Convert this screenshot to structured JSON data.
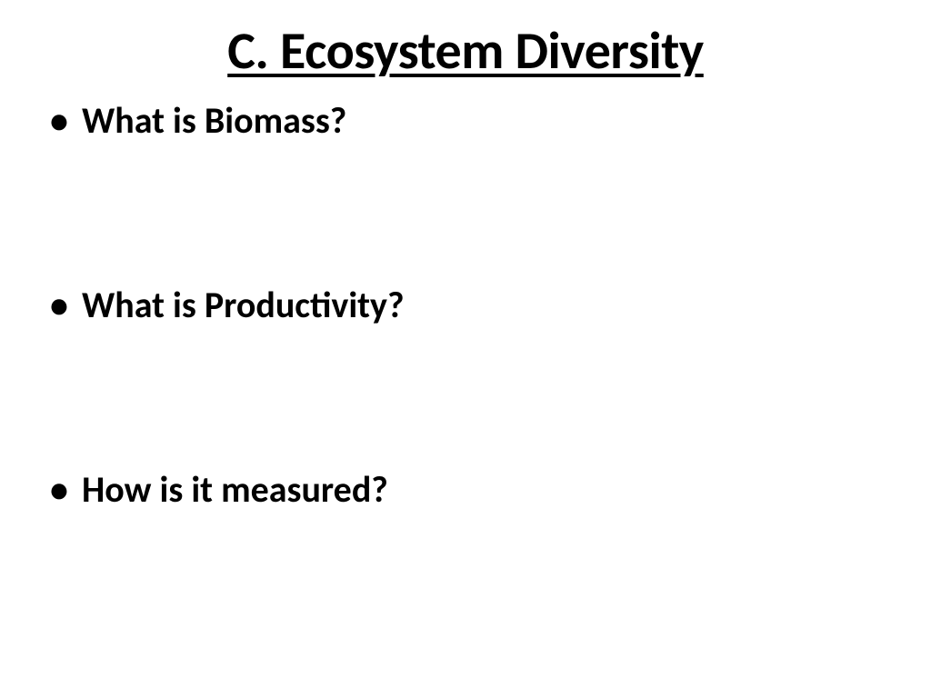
{
  "slide": {
    "title": "C. Ecosystem Diversity",
    "title_fontsize": 58,
    "title_color": "#000000",
    "title_weight": 700,
    "title_underline": true,
    "title_align": "center",
    "background_color": "#ffffff",
    "bullets": [
      {
        "text": "What is Biomass?"
      },
      {
        "text": "What is Productivity?"
      },
      {
        "text": "How is it measured?"
      }
    ],
    "bullet_fontsize": 40,
    "bullet_weight": 700,
    "bullet_color": "#000000",
    "bullet_marker": "•",
    "bullet_spacing": 155,
    "font_family": "Calibri"
  }
}
